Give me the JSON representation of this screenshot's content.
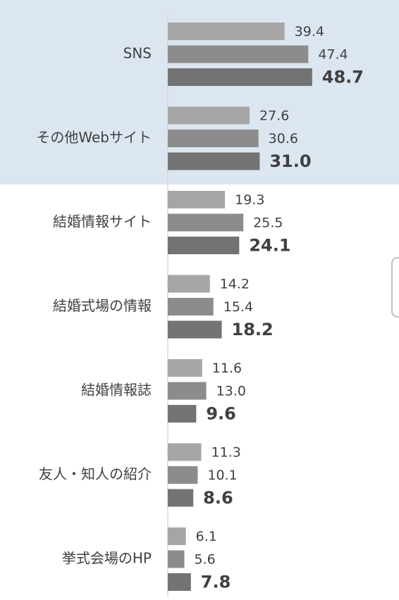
{
  "chart_data": {
    "type": "bar",
    "orientation": "horizontal",
    "categories": [
      "SNS",
      "その他Webサイト",
      "結婚情報サイト",
      "結婚式場の情報",
      "結婚情報誌",
      "友人・知人の紹介",
      "挙式会場のHP"
    ],
    "series": [
      {
        "color": "#a6a6a6",
        "values": [
          39.4,
          27.6,
          19.3,
          14.2,
          11.6,
          11.3,
          6.1
        ],
        "value_labels": [
          "39.4",
          "27.6",
          "19.3",
          "14.2",
          "11.6",
          "11.3",
          "6.1"
        ]
      },
      {
        "color": "#8c8c8c",
        "values": [
          47.4,
          30.6,
          25.5,
          15.4,
          13.0,
          10.1,
          5.6
        ],
        "value_labels": [
          "47.4",
          "30.6",
          "25.5",
          "15.4",
          "13.0",
          "10.1",
          "5.6"
        ]
      },
      {
        "color": "#737373",
        "values": [
          48.7,
          31.0,
          24.1,
          18.2,
          9.6,
          8.6,
          7.8
        ],
        "value_labels": [
          "48.7",
          "31.0",
          "24.1",
          "18.2",
          "9.6",
          "8.6",
          "7.8"
        ]
      }
    ],
    "xlim": [
      0,
      78
    ]
  }
}
